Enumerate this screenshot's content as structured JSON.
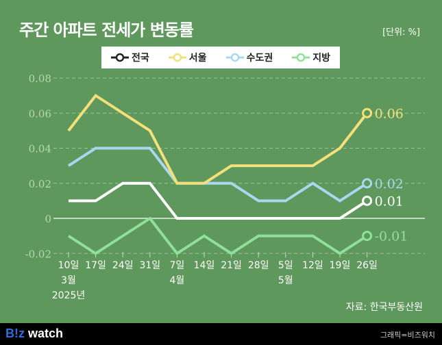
{
  "header": {
    "title": "주간 아파트 전세가 변동률",
    "unit": "[단위: %]"
  },
  "source": "자료: 한국부동산원",
  "footer": {
    "logo_pre": "B",
    "logo_mid": "!z",
    "logo_post": " watch",
    "credit": "그래픽=비즈워치"
  },
  "chart_data": {
    "type": "line",
    "title": "주간 아파트 전세가 변동률",
    "ylabel": "%",
    "ylim": [
      -0.02,
      0.08
    ],
    "yticks": [
      "0.08",
      "0.06",
      "0.04",
      "0.02",
      "0",
      "-0.02"
    ],
    "ytick_values": [
      0.08,
      0.06,
      0.04,
      0.02,
      0,
      -0.02
    ],
    "categories": [
      "10일",
      "17일",
      "24일",
      "31일",
      "7일",
      "14일",
      "21일",
      "28일",
      "5일",
      "12일",
      "19일",
      "26일"
    ],
    "month_labels": [
      {
        "index": 0,
        "month": "3월",
        "year": "2025년"
      },
      {
        "index": 4,
        "month": "4월"
      },
      {
        "index": 8,
        "month": "5월"
      }
    ],
    "legend_placement": "top-center",
    "series": [
      {
        "name": "전국",
        "color": "#ffffff",
        "values": [
          0.01,
          0.01,
          0.02,
          0.02,
          0,
          0,
          0,
          0,
          0,
          0,
          0,
          0.01
        ],
        "end_label": "0.01"
      },
      {
        "name": "서울",
        "color": "#f3e07a",
        "values": [
          0.05,
          0.07,
          0.06,
          0.05,
          0.02,
          0.02,
          0.03,
          0.03,
          0.03,
          0.03,
          0.04,
          0.06
        ],
        "end_label": "0.06"
      },
      {
        "name": "수도권",
        "color": "#a8d8ee",
        "values": [
          0.03,
          0.04,
          0.04,
          0.04,
          0.02,
          0.02,
          0.02,
          0.01,
          0.01,
          0.02,
          0.01,
          0.02
        ],
        "end_label": "0.02"
      },
      {
        "name": "지방",
        "color": "#8fe09a",
        "values": [
          -0.01,
          -0.02,
          -0.01,
          0,
          -0.02,
          -0.01,
          -0.02,
          -0.01,
          -0.01,
          -0.01,
          -0.02,
          -0.01
        ],
        "end_label": "-0.01"
      }
    ]
  }
}
